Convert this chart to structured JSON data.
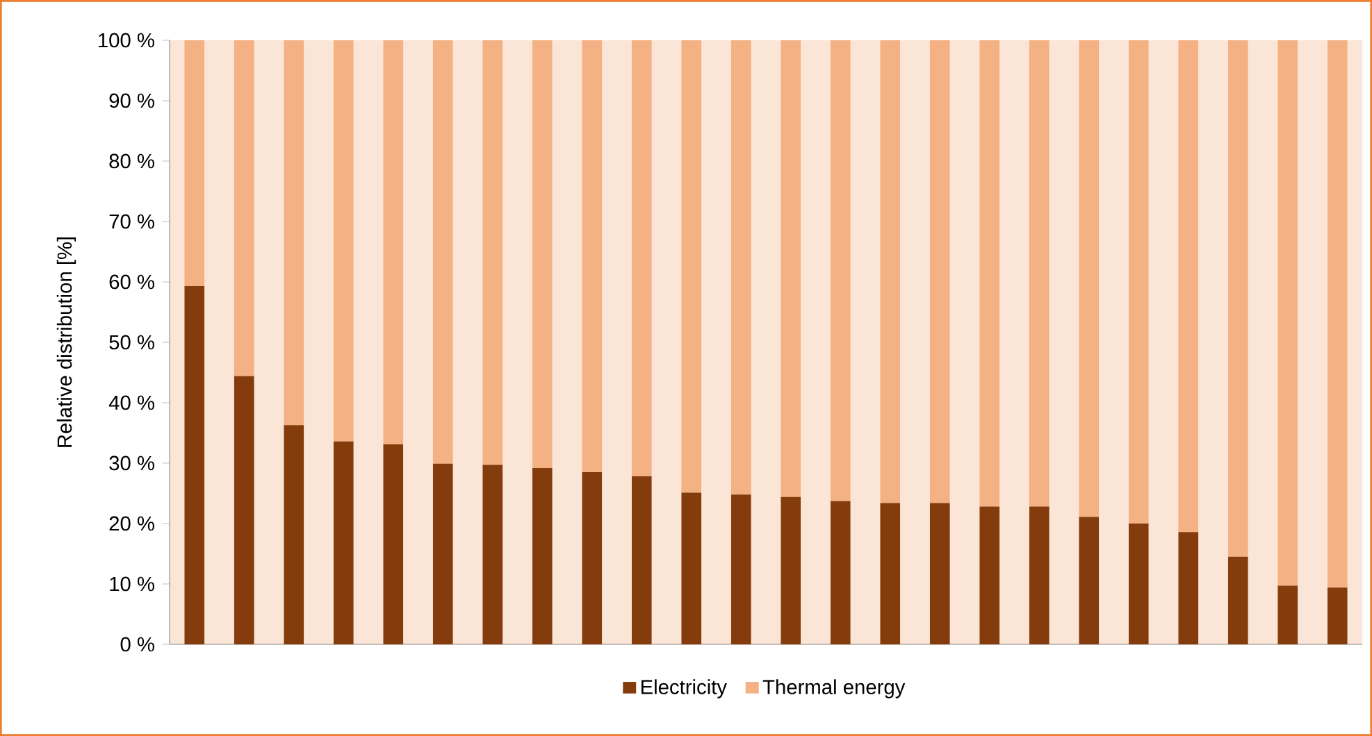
{
  "chart_data": {
    "type": "bar",
    "stacked": true,
    "ylabel": "Relative distribution [%]",
    "categories": [
      null,
      null,
      null,
      null,
      null,
      null,
      null,
      null,
      null,
      null,
      null,
      null,
      null,
      null,
      null,
      null,
      null,
      null,
      null,
      null,
      null,
      null,
      null,
      null
    ],
    "series": [
      {
        "name": "Electricity",
        "color": "#843c0c",
        "values": [
          59.3,
          44.4,
          36.3,
          33.6,
          33.1,
          29.9,
          29.7,
          29.2,
          28.5,
          27.8,
          25.1,
          24.8,
          24.4,
          23.7,
          23.4,
          23.4,
          22.8,
          22.8,
          21.1,
          20.0,
          18.6,
          14.5,
          9.7,
          9.4
        ]
      },
      {
        "name": "Thermal energy",
        "color": "#f4b183",
        "values": [
          40.7,
          55.6,
          63.7,
          66.4,
          66.9,
          70.1,
          70.3,
          70.8,
          71.5,
          72.2,
          74.9,
          75.2,
          75.6,
          76.3,
          76.6,
          76.6,
          77.2,
          77.2,
          78.9,
          80.0,
          81.4,
          85.5,
          90.3,
          90.6
        ]
      }
    ],
    "ylim": [
      0,
      100
    ],
    "yticks": [
      {
        "value": 0,
        "label": "0 %"
      },
      {
        "value": 10,
        "label": "10 %"
      },
      {
        "value": 20,
        "label": "20 %"
      },
      {
        "value": 30,
        "label": "30 %"
      },
      {
        "value": 40,
        "label": "40 %"
      },
      {
        "value": 50,
        "label": "50 %"
      },
      {
        "value": 60,
        "label": "60 %"
      },
      {
        "value": 70,
        "label": "70 %"
      },
      {
        "value": 80,
        "label": "80 %"
      },
      {
        "value": 90,
        "label": "90 %"
      },
      {
        "value": 100,
        "label": "100 %"
      }
    ],
    "grid": false,
    "legend": "bottom"
  }
}
